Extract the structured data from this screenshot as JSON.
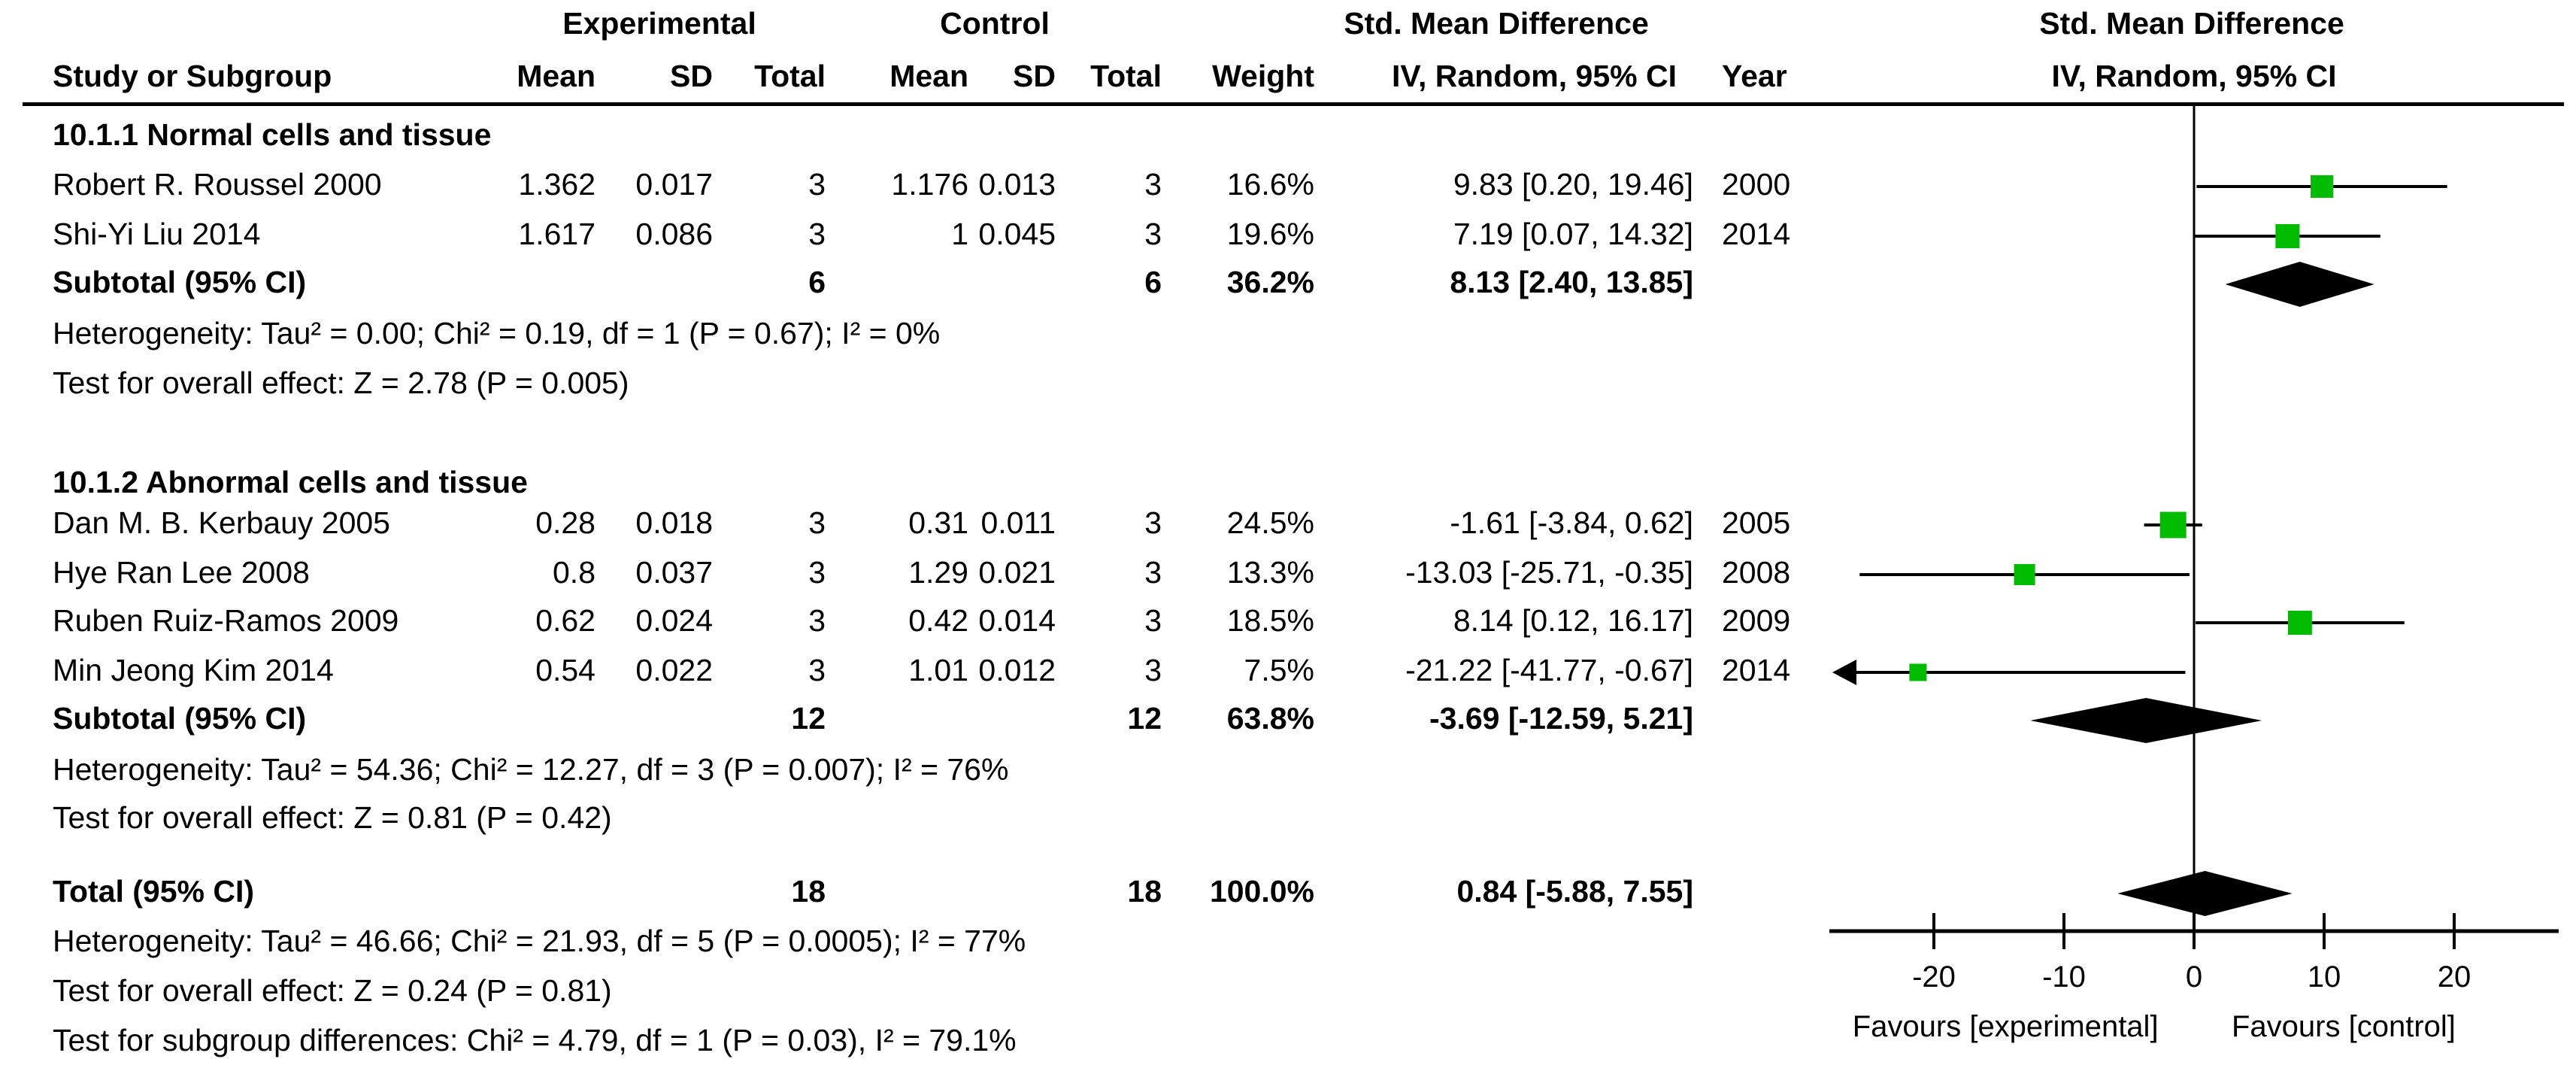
{
  "header": {
    "study_col": "Study or Subgroup",
    "group_experimental": "Experimental",
    "group_control": "Control",
    "group_smd_left": "Std. Mean Difference",
    "group_smd_right": "Std. Mean Difference",
    "mean": "Mean",
    "sd": "SD",
    "total": "Total",
    "weight": "Weight",
    "ci_col": "IV, Random, 95% CI",
    "year": "Year",
    "ci_col_right": "IV, Random, 95% CI"
  },
  "sections": [
    {
      "heading": "10.1.1 Normal cells and tissue",
      "studies": [
        {
          "name": "Robert R. Roussel 2000",
          "mean_e": "1.362",
          "sd_e": "0.017",
          "total_e": "3",
          "mean_c": "1.176",
          "sd_c": "0.013",
          "total_c": "3",
          "weight": "16.6%",
          "est": "9.83 [0.20, 19.46]",
          "year": "2000"
        },
        {
          "name": "Shi-Yi Liu 2014",
          "mean_e": "1.617",
          "sd_e": "0.086",
          "total_e": "3",
          "mean_c": "1",
          "sd_c": "0.045",
          "total_c": "3",
          "weight": "19.6%",
          "est": "7.19 [0.07, 14.32]",
          "year": "2014"
        }
      ],
      "subtotal": {
        "label": "Subtotal (95% CI)",
        "total_e": "6",
        "total_c": "6",
        "weight": "36.2%",
        "est": "8.13 [2.40, 13.85]"
      },
      "heterogeneity": "Heterogeneity: Tau² = 0.00; Chi² = 0.19, df = 1 (P = 0.67); I² = 0%",
      "overall_effect": "Test for overall effect: Z = 2.78 (P = 0.005)"
    },
    {
      "heading": "10.1.2 Abnormal cells and tissue",
      "studies": [
        {
          "name": "Dan M. B. Kerbauy 2005",
          "mean_e": "0.28",
          "sd_e": "0.018",
          "total_e": "3",
          "mean_c": "0.31",
          "sd_c": "0.011",
          "total_c": "3",
          "weight": "24.5%",
          "est": "-1.61 [-3.84, 0.62]",
          "year": "2005"
        },
        {
          "name": "Hye Ran Lee 2008",
          "mean_e": "0.8",
          "sd_e": "0.037",
          "total_e": "3",
          "mean_c": "1.29",
          "sd_c": "0.021",
          "total_c": "3",
          "weight": "13.3%",
          "est": "-13.03 [-25.71, -0.35]",
          "year": "2008"
        },
        {
          "name": "Ruben Ruiz-Ramos 2009",
          "mean_e": "0.62",
          "sd_e": "0.024",
          "total_e": "3",
          "mean_c": "0.42",
          "sd_c": "0.014",
          "total_c": "3",
          "weight": "18.5%",
          "est": "8.14 [0.12, 16.17]",
          "year": "2009"
        },
        {
          "name": "Min Jeong Kim 2014",
          "mean_e": "0.54",
          "sd_e": "0.022",
          "total_e": "3",
          "mean_c": "1.01",
          "sd_c": "0.012",
          "total_c": "3",
          "weight": "7.5%",
          "est": "-21.22 [-41.77, -0.67]",
          "year": "2014"
        }
      ],
      "subtotal": {
        "label": "Subtotal (95% CI)",
        "total_e": "12",
        "total_c": "12",
        "weight": "63.8%",
        "est": "-3.69 [-12.59, 5.21]"
      },
      "heterogeneity": "Heterogeneity: Tau² = 54.36; Chi² = 12.27, df = 3 (P = 0.007); I² = 76%",
      "overall_effect": "Test for overall effect: Z = 0.81 (P = 0.42)"
    }
  ],
  "total_row": {
    "label": "Total (95% CI)",
    "total_e": "18",
    "total_c": "18",
    "weight": "100.0%",
    "est": "0.84 [-5.88, 7.55]"
  },
  "total_heterogeneity": "Heterogeneity: Tau² = 46.66; Chi² = 21.93, df = 5 (P = 0.0005); I² = 77%",
  "total_overall_effect": "Test for overall effect: Z = 0.24 (P = 0.81)",
  "subgroup_differences": "Test for subgroup differences: Chi² = 4.79, df = 1 (P = 0.03), I² = 79.1%",
  "chart_data": {
    "type": "forest",
    "title": "Std. Mean Difference",
    "subtitle": "IV, Random, 95% CI",
    "effect_measure": "Std. Mean Difference, IV, Random, 95% CI",
    "axis": {
      "ticks": [
        -20,
        -10,
        0,
        10,
        20
      ],
      "min": -28,
      "max": 28,
      "zero_line": 0
    },
    "favours_left": "Favours [experimental]",
    "favours_right": "Favours [control]",
    "marker_color": "#00bb00",
    "diamond_color": "#000000",
    "groups": [
      {
        "name": "10.1.1 Normal cells and tissue",
        "points": [
          {
            "study": "Robert R. Roussel 2000",
            "est": 9.83,
            "lo": 0.2,
            "hi": 19.46,
            "weight": 16.6
          },
          {
            "study": "Shi-Yi Liu 2014",
            "est": 7.19,
            "lo": 0.07,
            "hi": 14.32,
            "weight": 19.6
          }
        ],
        "diamond": {
          "est": 8.13,
          "lo": 2.4,
          "hi": 13.85
        }
      },
      {
        "name": "10.1.2 Abnormal cells and tissue",
        "points": [
          {
            "study": "Dan M. B. Kerbauy 2005",
            "est": -1.61,
            "lo": -3.84,
            "hi": 0.62,
            "weight": 24.5
          },
          {
            "study": "Hye Ran Lee 2008",
            "est": -13.03,
            "lo": -25.71,
            "hi": -0.35,
            "weight": 13.3
          },
          {
            "study": "Ruben Ruiz-Ramos 2009",
            "est": 8.14,
            "lo": 0.12,
            "hi": 16.17,
            "weight": 18.5
          },
          {
            "study": "Min Jeong Kim 2014",
            "est": -21.22,
            "lo": -41.77,
            "hi": -0.67,
            "weight": 7.5
          }
        ],
        "diamond": {
          "est": -3.69,
          "lo": -12.59,
          "hi": 5.21
        }
      }
    ],
    "total_diamond": {
      "est": 0.84,
      "lo": -5.88,
      "hi": 7.55
    }
  }
}
